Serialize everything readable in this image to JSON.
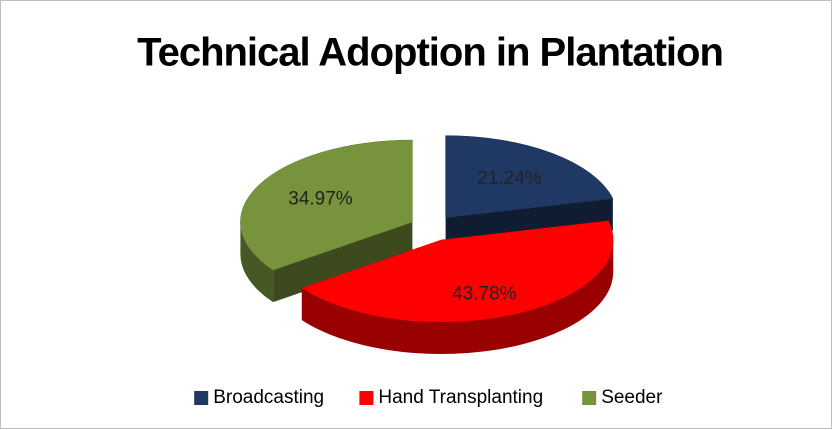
{
  "chart_data": {
    "type": "pie",
    "title": "Technical Adoption in Plantation",
    "categories": [
      "Broadcasting",
      "Hand Transplanting",
      "Seeder"
    ],
    "values": [
      21.24,
      43.78,
      34.97
    ],
    "value_labels": [
      "21.24%",
      "43.78%",
      "34.97%"
    ],
    "colors": [
      "#1f3864",
      "#ff0000",
      "#77933c"
    ],
    "legend": "bottom"
  }
}
